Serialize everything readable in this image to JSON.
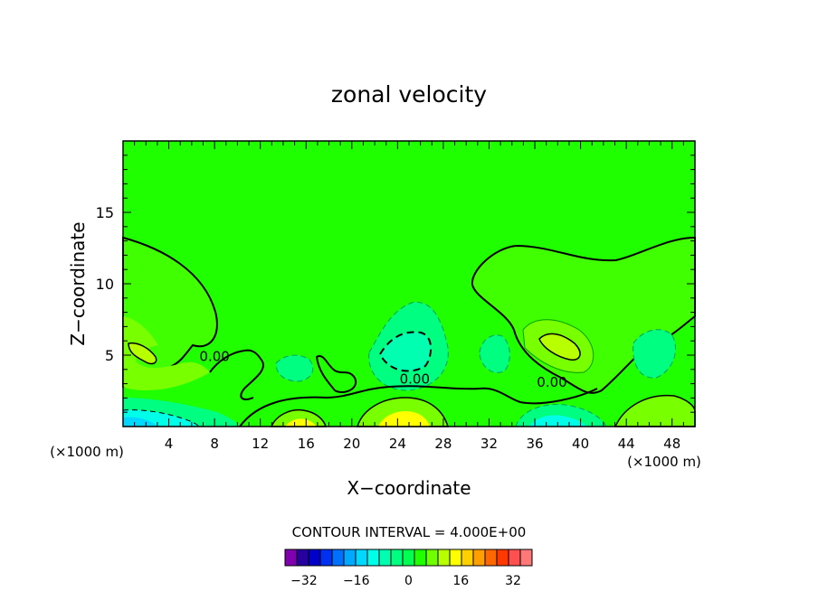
{
  "chart_data": {
    "type": "contour",
    "title": "zonal velocity",
    "xlabel": "X−coordinate",
    "ylabel": "Z−coordinate",
    "x_unit_left": "(×1000 m)",
    "x_unit_right": "(×1000 m)",
    "xlim": [
      0,
      50
    ],
    "ylim": [
      0,
      20
    ],
    "x_ticks": [
      4,
      8,
      12,
      16,
      20,
      24,
      28,
      32,
      36,
      40,
      44,
      48
    ],
    "y_ticks": [
      5,
      10,
      15
    ],
    "contour_labels": [
      {
        "text": "0.00",
        "x": 8,
        "z": 4.6
      },
      {
        "text": "0.00",
        "x": 25.5,
        "z": 3.0
      },
      {
        "text": "0.00",
        "x": 37.5,
        "z": 2.8
      }
    ],
    "contour_interval_text": "CONTOUR INTERVAL = 4.000E+00",
    "colorbar": {
      "min": -36,
      "max": 36,
      "step": 4,
      "tick_labels": [
        "−32",
        "−16",
        "0",
        "16",
        "32"
      ],
      "tick_values": [
        -32,
        -16,
        0,
        16,
        32
      ],
      "colors": [
        "#8000b0",
        "#2800a0",
        "#0000c8",
        "#0030f0",
        "#0070ff",
        "#00a8ff",
        "#00d8ff",
        "#00ffe8",
        "#00ffb0",
        "#00ff80",
        "#00ff50",
        "#20ff00",
        "#70ff00",
        "#b8ff00",
        "#ffff00",
        "#ffd000",
        "#ffa000",
        "#ff6800",
        "#ff3800",
        "#ff5050",
        "#ff7878"
      ]
    },
    "background_color": "#20ff00"
  }
}
